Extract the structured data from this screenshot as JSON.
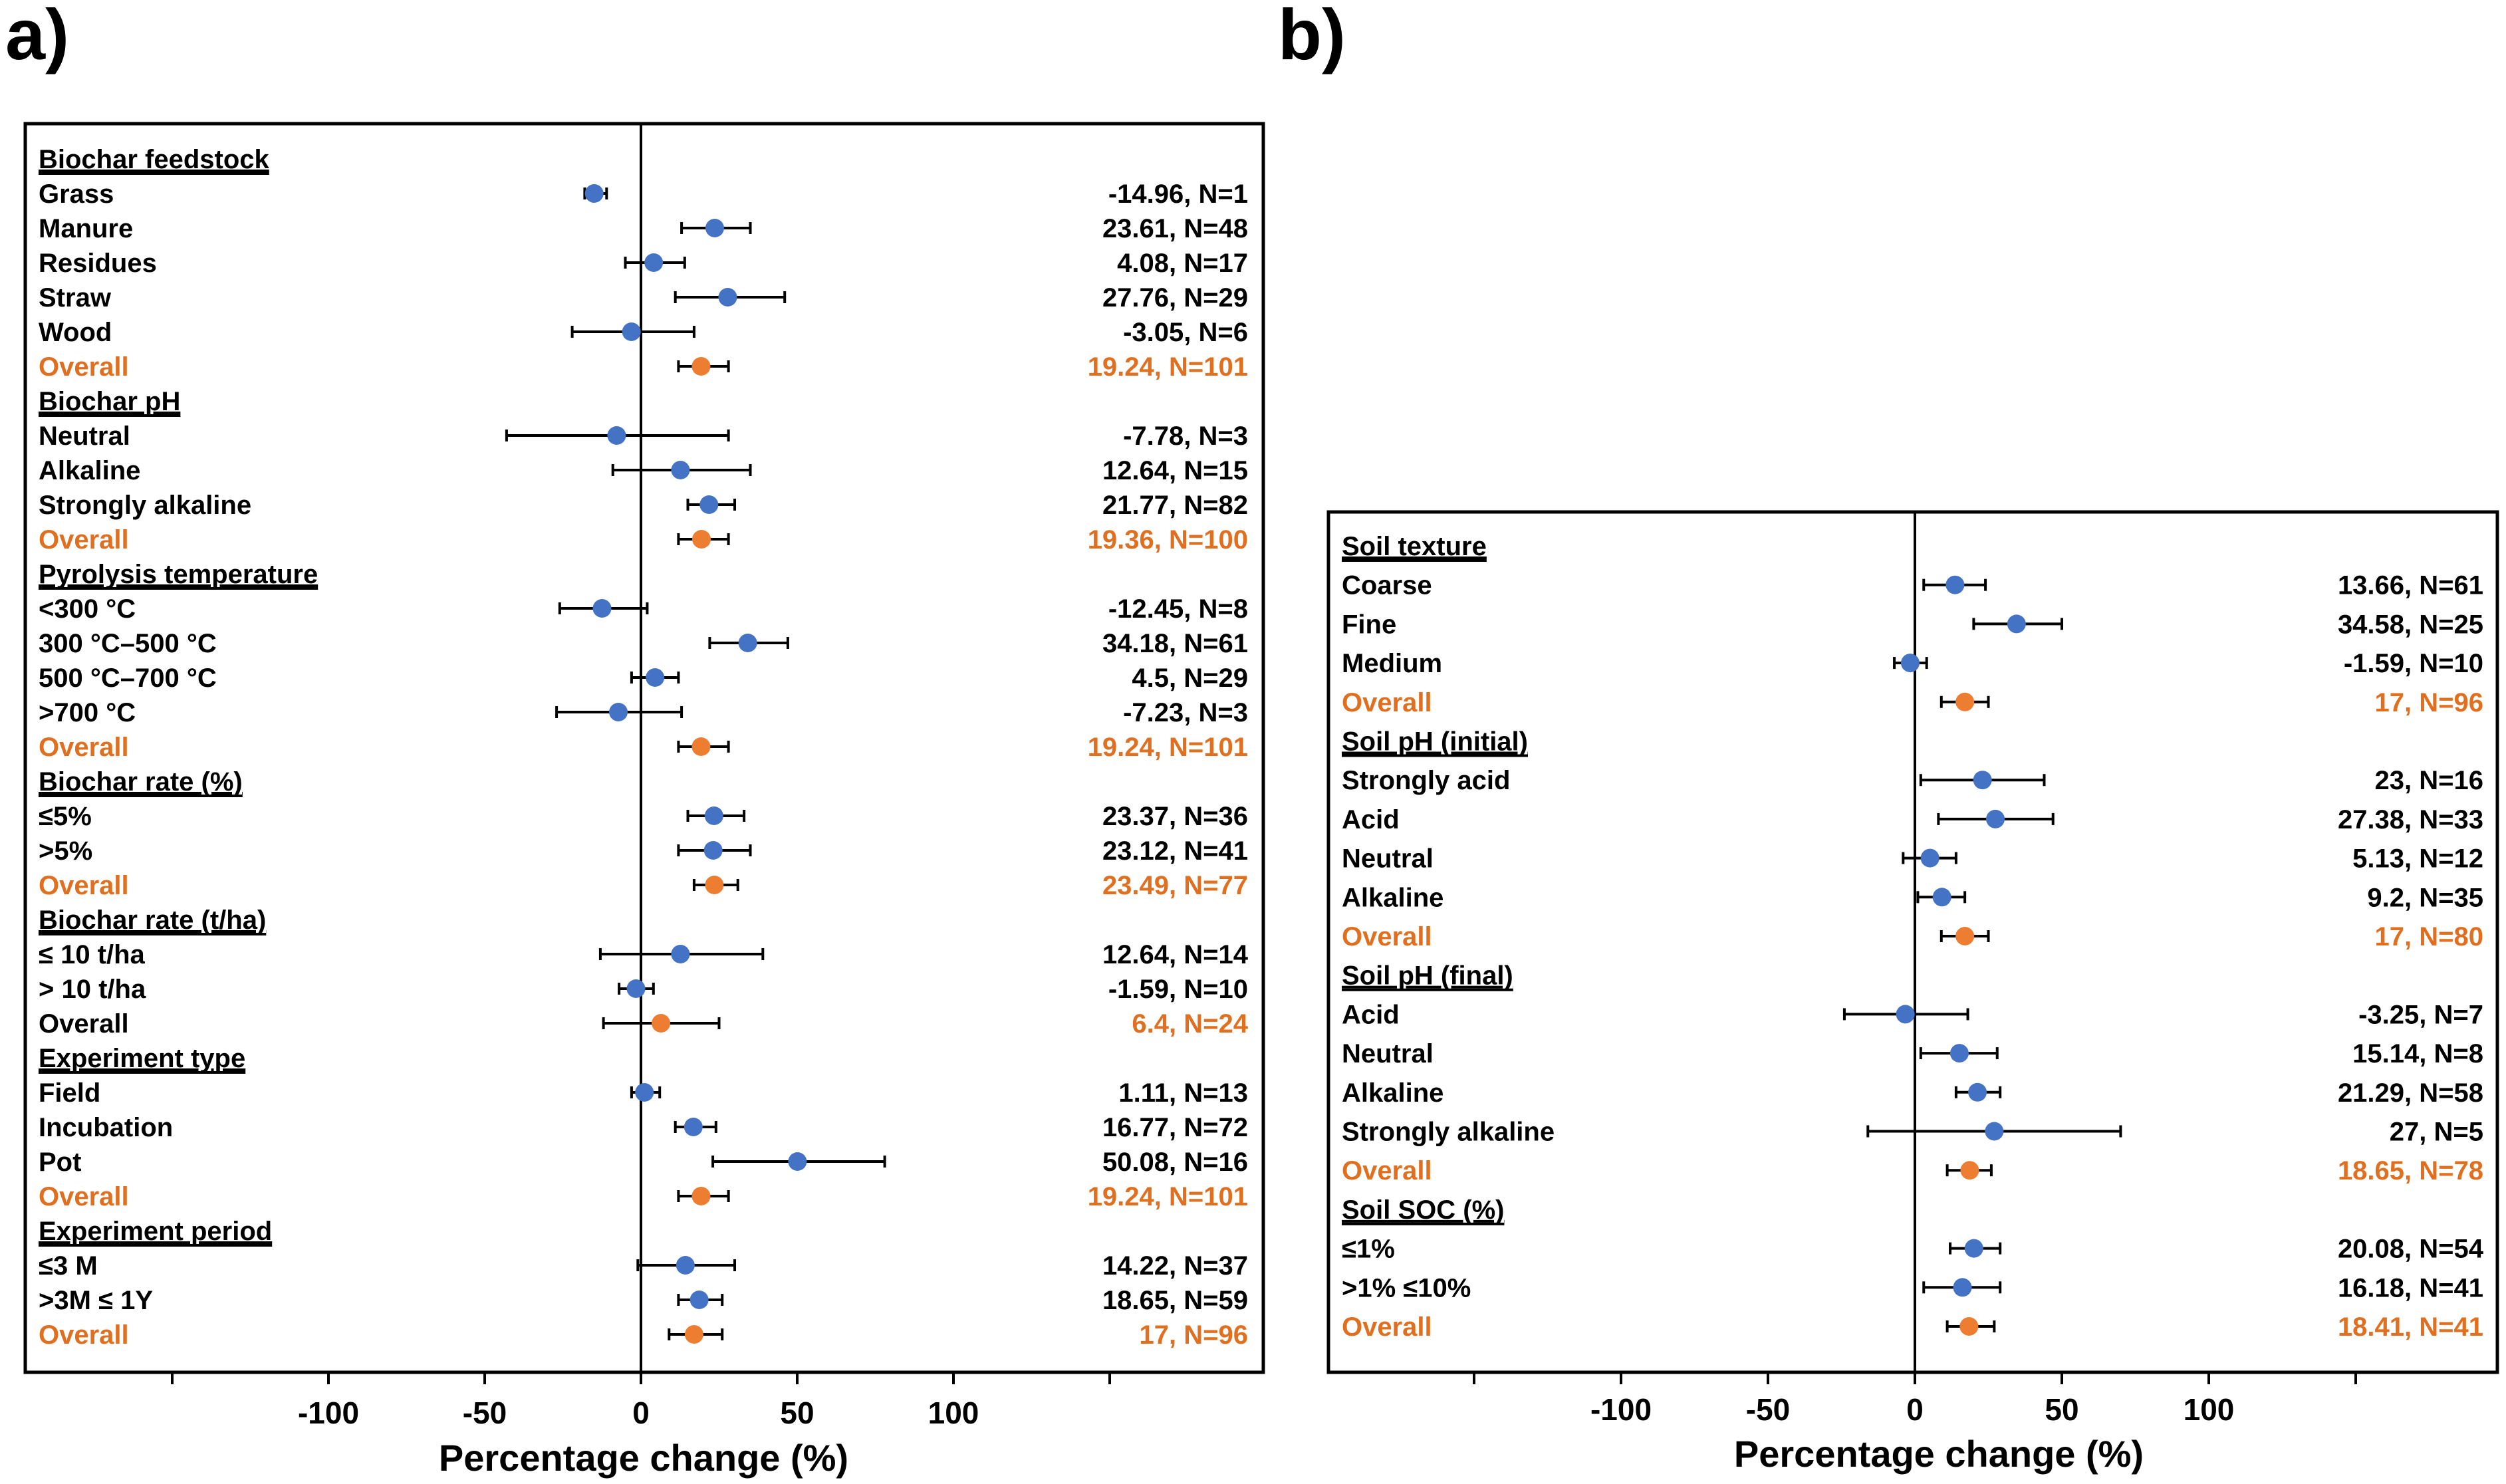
{
  "colors": {
    "point": "#4472C4",
    "overall": "#ED7D31",
    "text": "#000000",
    "overall_text": "#E07020"
  },
  "chart_data": [
    {
      "type": "forest",
      "panel_label": "a)",
      "title": "",
      "xlabel": "Percentage change (%)",
      "ylabel": "",
      "xlim": [
        -200,
        200
      ],
      "xticks": [
        -100,
        -50,
        0,
        50,
        100
      ],
      "xtick_labels": [
        "-100",
        "-50",
        "0",
        "50",
        "100"
      ],
      "rows": [
        {
          "kind": "header",
          "label": "Biochar feedstock"
        },
        {
          "kind": "item",
          "label": "Grass",
          "value": -14.96,
          "ci": [
            -18,
            -11
          ],
          "annotation": "-14.96, N=1"
        },
        {
          "kind": "item",
          "label": "Manure",
          "value": 23.61,
          "ci": [
            13,
            35
          ],
          "annotation": "23.61, N=48"
        },
        {
          "kind": "item",
          "label": "Residues",
          "value": 4.08,
          "ci": [
            -5,
            14
          ],
          "annotation": "4.08, N=17"
        },
        {
          "kind": "item",
          "label": "Straw",
          "value": 27.76,
          "ci": [
            11,
            46
          ],
          "annotation": "27.76, N=29"
        },
        {
          "kind": "item",
          "label": "Wood",
          "value": -3.05,
          "ci": [
            -22,
            17
          ],
          "annotation": "-3.05, N=6"
        },
        {
          "kind": "overall",
          "label": "Overall",
          "value": 19.24,
          "ci": [
            12,
            28
          ],
          "annotation": "19.24, N=101"
        },
        {
          "kind": "header",
          "label": "Biochar pH"
        },
        {
          "kind": "item",
          "label": "Neutral",
          "value": -7.78,
          "ci": [
            -43,
            28
          ],
          "annotation": "-7.78, N=3"
        },
        {
          "kind": "item",
          "label": "Alkaline",
          "value": 12.64,
          "ci": [
            -9,
            35
          ],
          "annotation": "12.64, N=15"
        },
        {
          "kind": "item",
          "label": "Strongly alkaline",
          "value": 21.77,
          "ci": [
            15,
            30
          ],
          "annotation": "21.77, N=82"
        },
        {
          "kind": "overall",
          "label": "Overall",
          "value": 19.36,
          "ci": [
            12,
            28
          ],
          "annotation": "19.36, N=100"
        },
        {
          "kind": "header",
          "label": "Pyrolysis temperature"
        },
        {
          "kind": "item",
          "label": "<300 °C",
          "value": -12.45,
          "ci": [
            -26,
            2
          ],
          "annotation": "-12.45, N=8"
        },
        {
          "kind": "item",
          "label": "300 °C–500 °C",
          "value": 34.18,
          "ci": [
            22,
            47
          ],
          "annotation": "34.18, N=61"
        },
        {
          "kind": "item",
          "label": "500 °C–700 °C",
          "value": 4.5,
          "ci": [
            -3,
            12
          ],
          "annotation": "4.5, N=29"
        },
        {
          "kind": "item",
          "label": ">700 °C",
          "value": -7.23,
          "ci": [
            -27,
            13
          ],
          "annotation": "-7.23, N=3"
        },
        {
          "kind": "overall",
          "label": "Overall",
          "value": 19.24,
          "ci": [
            12,
            28
          ],
          "annotation": "19.24, N=101"
        },
        {
          "kind": "header",
          "label": "Biochar rate (%)"
        },
        {
          "kind": "item",
          "label": "≤5%",
          "value": 23.37,
          "ci": [
            15,
            33
          ],
          "annotation": "23.37, N=36"
        },
        {
          "kind": "item",
          "label": ">5%",
          "value": 23.12,
          "ci": [
            12,
            35
          ],
          "annotation": "23.12, N=41"
        },
        {
          "kind": "overall",
          "label": "Overall",
          "value": 23.49,
          "ci": [
            17,
            31
          ],
          "annotation": "23.49, N=77"
        },
        {
          "kind": "header",
          "label": "Biochar rate (t/ha)"
        },
        {
          "kind": "item",
          "label": "≤ 10 t/ha",
          "value": 12.64,
          "ci": [
            -13,
            39
          ],
          "annotation": "12.64, N=14"
        },
        {
          "kind": "item",
          "label": "> 10 t/ha",
          "value": -1.59,
          "ci": [
            -7,
            4
          ],
          "annotation": "-1.59, N=10"
        },
        {
          "kind": "overall",
          "label": "Overall",
          "value": 6.4,
          "ci": [
            -12,
            25
          ],
          "annotation": "6.4, N=24",
          "label_plain": true
        },
        {
          "kind": "header",
          "label": "Experiment type"
        },
        {
          "kind": "item",
          "label": "Field",
          "value": 1.11,
          "ci": [
            -3,
            6
          ],
          "annotation": "1.11, N=13"
        },
        {
          "kind": "item",
          "label": "Incubation",
          "value": 16.77,
          "ci": [
            11,
            24
          ],
          "annotation": "16.77, N=72"
        },
        {
          "kind": "item",
          "label": "Pot",
          "value": 50.08,
          "ci": [
            23,
            78
          ],
          "annotation": "50.08, N=16"
        },
        {
          "kind": "overall",
          "label": "Overall",
          "value": 19.24,
          "ci": [
            12,
            28
          ],
          "annotation": "19.24, N=101"
        },
        {
          "kind": "header",
          "label": "Experiment period"
        },
        {
          "kind": "item",
          "label": "≤3 M",
          "value": 14.22,
          "ci": [
            -1,
            30
          ],
          "annotation": "14.22, N=37"
        },
        {
          "kind": "item",
          "label": ">3M ≤ 1Y",
          "value": 18.65,
          "ci": [
            12,
            26
          ],
          "annotation": "18.65, N=59"
        },
        {
          "kind": "overall",
          "label": "Overall",
          "value": 17,
          "ci": [
            9,
            26
          ],
          "annotation": "17, N=96"
        }
      ]
    },
    {
      "type": "forest",
      "panel_label": "b)",
      "title": "",
      "xlabel": "Percentage change (%)",
      "ylabel": "",
      "xlim": [
        -200,
        200
      ],
      "xticks": [
        -100,
        -50,
        0,
        50,
        100
      ],
      "xtick_labels": [
        "-100",
        "-50",
        "0",
        "50",
        "100"
      ],
      "rows": [
        {
          "kind": "header",
          "label": "Soil texture"
        },
        {
          "kind": "item",
          "label": "Coarse",
          "value": 13.66,
          "ci": [
            3,
            24
          ],
          "annotation": "13.66, N=61"
        },
        {
          "kind": "item",
          "label": "Fine",
          "value": 34.58,
          "ci": [
            20,
            50
          ],
          "annotation": "34.58, N=25"
        },
        {
          "kind": "item",
          "label": "Medium",
          "value": -1.59,
          "ci": [
            -7,
            4
          ],
          "annotation": "-1.59, N=10"
        },
        {
          "kind": "overall",
          "label": "Overall",
          "value": 17,
          "ci": [
            9,
            25
          ],
          "annotation": "17, N=96"
        },
        {
          "kind": "header",
          "label": "Soil pH (initial)"
        },
        {
          "kind": "item",
          "label": "Strongly acid",
          "value": 23,
          "ci": [
            2,
            44
          ],
          "annotation": "23, N=16"
        },
        {
          "kind": "item",
          "label": "Acid",
          "value": 27.38,
          "ci": [
            8,
            47
          ],
          "annotation": "27.38, N=33"
        },
        {
          "kind": "item",
          "label": "Neutral",
          "value": 5.13,
          "ci": [
            -4,
            14
          ],
          "annotation": "5.13, N=12"
        },
        {
          "kind": "item",
          "label": "Alkaline",
          "value": 9.2,
          "ci": [
            1,
            17
          ],
          "annotation": "9.2, N=35"
        },
        {
          "kind": "overall",
          "label": "Overall",
          "value": 17,
          "ci": [
            9,
            25
          ],
          "annotation": "17, N=80"
        },
        {
          "kind": "header",
          "label": "Soil pH  (final)"
        },
        {
          "kind": "item",
          "label": "Acid",
          "value": -3.25,
          "ci": [
            -24,
            18
          ],
          "annotation": "-3.25, N=7"
        },
        {
          "kind": "item",
          "label": "Neutral",
          "value": 15.14,
          "ci": [
            2,
            28
          ],
          "annotation": "15.14, N=8"
        },
        {
          "kind": "item",
          "label": "Alkaline",
          "value": 21.29,
          "ci": [
            14,
            29
          ],
          "annotation": "21.29, N=58"
        },
        {
          "kind": "item",
          "label": "Strongly alkaline",
          "value": 27,
          "ci": [
            -16,
            70
          ],
          "annotation": "27, N=5"
        },
        {
          "kind": "overall",
          "label": "Overall",
          "value": 18.65,
          "ci": [
            11,
            26
          ],
          "annotation": "18.65, N=78"
        },
        {
          "kind": "header",
          "label": "Soil SOC (%)"
        },
        {
          "kind": "item",
          "label": "≤1%",
          "value": 20.08,
          "ci": [
            12,
            29
          ],
          "annotation": "20.08, N=54"
        },
        {
          "kind": "item",
          "label": " >1% ≤10%",
          "value": 16.18,
          "ci": [
            3,
            29
          ],
          "annotation": "16.18, N=41"
        },
        {
          "kind": "overall",
          "label": "Overall",
          "value": 18.41,
          "ci": [
            11,
            27
          ],
          "annotation": "18.41, N=41"
        }
      ]
    }
  ]
}
